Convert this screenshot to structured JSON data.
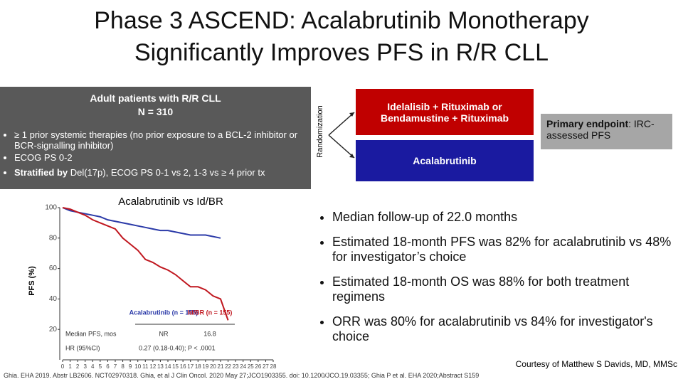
{
  "title": [
    "Phase 3 ASCEND: Acalabrutinib Monotherapy",
    "Significantly Improves PFS in R/R CLL"
  ],
  "design": {
    "heading": "Adult patients with R/R CLL",
    "n": "N = 310",
    "criteria": [
      "≥ 1 prior systemic therapies (no prior exposure to a BCL-2 inhibitor or BCR-signalling inhibitor)",
      "ECOG PS 0-2"
    ],
    "stratified_label": "Stratified by",
    "stratified_text": " Del(17p), ECOG PS 0-1 vs 2, 1-3 vs ≥ 4 prior tx",
    "randomization": "Randomization",
    "arms": [
      "Idelalisib + Rituximab or Bendamustine + Rituximab",
      "Acalabrutinib"
    ],
    "endpoint_label": "Primary endpoint",
    "endpoint_text": ": IRC-assessed PFS"
  },
  "bullets": [
    "Median follow-up of 22.0 months",
    "Estimated 18-month PFS was 82% for acalabrutinib vs 48% for investigator’s choice",
    "Estimated 18-month OS was 88% for both treatment regimens",
    "ORR was 80% for acalabrutinib vs 84% for investigator's choice"
  ],
  "courtesy": "Courtesy of Matthew S Davids, MD, MMSc",
  "citation": "Ghia. EHA 2019. Abstr LB2606. NCT02970318. Ghia, et al J Clin Oncol. 2020 May 27;JCO1903355. doi: 10.1200/JCO.19.03355; Ghia P et al. EHA 2020;Abstract S159",
  "chart_data": {
    "type": "line",
    "title": "Acalabrutinib vs Id/BR",
    "y_label": "PFS (%)",
    "x": [
      0,
      1,
      2,
      3,
      4,
      5,
      6,
      7,
      8,
      9,
      10,
      11,
      12,
      13,
      14,
      15,
      16,
      17,
      18,
      19,
      20,
      21,
      22,
      23,
      24,
      25,
      26,
      27,
      28
    ],
    "series": [
      {
        "name": "Acalabrutinib (n = 155)",
        "color": "#2b3aa8",
        "values": [
          100,
          98,
          97,
          96,
          95,
          94,
          92,
          91,
          90,
          89,
          88,
          87,
          86,
          85,
          85,
          84,
          83,
          82,
          82,
          82,
          81,
          80,
          null,
          null,
          null,
          null,
          null,
          null,
          null
        ]
      },
      {
        "name": "Id/BR (n = 155)",
        "color": "#c0171f",
        "values": [
          100,
          99,
          97,
          95,
          92,
          90,
          88,
          86,
          80,
          76,
          72,
          66,
          64,
          61,
          59,
          56,
          52,
          48,
          48,
          46,
          42,
          40,
          26,
          null,
          null,
          null,
          null,
          null,
          null
        ]
      }
    ],
    "xlim": [
      0,
      28
    ],
    "xticks": [
      0,
      1,
      2,
      3,
      4,
      5,
      6,
      7,
      8,
      9,
      10,
      11,
      12,
      13,
      14,
      15,
      16,
      17,
      18,
      19,
      20,
      21,
      22,
      23,
      24,
      25,
      26,
      27,
      28
    ],
    "ylim": [
      0,
      100
    ],
    "yticks": [
      20,
      40,
      60,
      80,
      100
    ],
    "table": {
      "rows": [
        [
          "Median PFS, mos",
          "NR",
          "16.8"
        ],
        [
          "HR (95%CI)",
          "0.27 (0.18-0.40); P < .0001"
        ]
      ]
    }
  }
}
